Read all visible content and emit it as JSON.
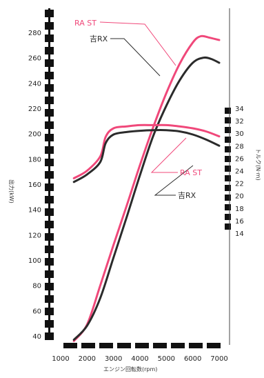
{
  "chart_data": {
    "type": "line",
    "xlabel": "エンジン回転数(rpm)",
    "ylabel_left": "出力(kW)",
    "ylabel_right": "トルク(N·m)",
    "x_ticks": [
      "1000",
      "2000",
      "3000",
      "4000",
      "5000",
      "6000",
      "7000"
    ],
    "y_left_ticks": [
      "40",
      "60",
      "80",
      "100",
      "120",
      "140",
      "160",
      "180",
      "200",
      "220",
      "240",
      "260",
      "280"
    ],
    "y_right_ticks": [
      "14",
      "16",
      "18",
      "20",
      "22",
      "24",
      "26",
      "28",
      "30",
      "32",
      "34"
    ],
    "xlim": [
      1000,
      7000
    ],
    "ylim_left": [
      40,
      280
    ],
    "ylim_right": [
      14,
      34
    ],
    "colors": {
      "ra_st": "#f0487a",
      "rx": "#2b2b2b",
      "axis_bar": "#111111"
    },
    "series": [
      {
        "name": "RA ST",
        "metric": "power",
        "axis": "left",
        "color": "#f0487a",
        "x": [
          1500,
          2000,
          2500,
          3000,
          3500,
          4000,
          4500,
          5000,
          5500,
          6000,
          6300,
          6600,
          7000
        ],
        "y": [
          36,
          49,
          80,
          112,
          143,
          175,
          205,
          232,
          255,
          272,
          277,
          276,
          274
        ]
      },
      {
        "name": "吉RX",
        "metric": "power",
        "axis": "left",
        "color": "#2b2b2b",
        "x": [
          1500,
          2000,
          2500,
          3000,
          3500,
          4000,
          4500,
          5000,
          5500,
          6000,
          6400,
          6700,
          7000
        ],
        "y": [
          37,
          48,
          70,
          102,
          134,
          167,
          198,
          222,
          242,
          256,
          260,
          259,
          256
        ]
      },
      {
        "name": "RA ST",
        "metric": "torque",
        "axis": "right",
        "color": "#f0487a",
        "x": [
          1500,
          2000,
          2500,
          2700,
          3000,
          3500,
          4000,
          4500,
          5000,
          5500,
          6000,
          6500,
          7000
        ],
        "y": [
          22.8,
          24.0,
          26.3,
          29.4,
          30.8,
          31.1,
          31.3,
          31.3,
          31.3,
          31.1,
          30.8,
          30.3,
          29.5
        ]
      },
      {
        "name": "吉RX",
        "metric": "torque",
        "axis": "right",
        "color": "#2b2b2b",
        "x": [
          1500,
          2000,
          2500,
          2700,
          3000,
          3500,
          4000,
          4500,
          5000,
          5500,
          6000,
          6500,
          7000
        ],
        "y": [
          22.2,
          23.4,
          25.4,
          28.4,
          29.8,
          30.2,
          30.4,
          30.5,
          30.5,
          30.3,
          29.8,
          29.0,
          28.0
        ]
      }
    ],
    "labels": {
      "power_ra": "RA ST",
      "power_rx": "吉RX",
      "torque_ra": "RA ST",
      "torque_rx": "吉RX"
    }
  }
}
